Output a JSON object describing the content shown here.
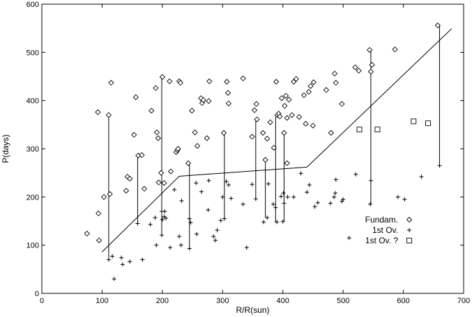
{
  "chart_data": {
    "type": "scatter",
    "xlabel": "R/R(sun)",
    "ylabel": "P(days)",
    "xlim": [
      0,
      700
    ],
    "ylim": [
      0,
      600
    ],
    "xticks": [
      0,
      100,
      200,
      300,
      400,
      500,
      600,
      700
    ],
    "yticks": [
      0,
      100,
      200,
      300,
      400,
      500,
      600
    ],
    "grid": false,
    "legend_position": "bottom-right",
    "legend": [
      {
        "label": "Fundam.",
        "marker": "diamond"
      },
      {
        "label": "1st Ov.",
        "marker": "plus"
      },
      {
        "label": "1st Ov. ?",
        "marker": "square"
      }
    ],
    "series": [
      {
        "name": "Fundam.",
        "marker": "diamond",
        "points": [
          [
            75,
            124
          ],
          [
            93,
            376
          ],
          [
            94,
            166
          ],
          [
            95,
            110
          ],
          [
            103,
            200
          ],
          [
            113,
            206
          ],
          [
            111,
            370
          ],
          [
            115,
            437
          ],
          [
            140,
            213
          ],
          [
            142,
            242
          ],
          [
            146,
            238
          ],
          [
            153,
            329
          ],
          [
            156,
            407
          ],
          [
            160,
            286
          ],
          [
            166,
            287
          ],
          [
            170,
            217
          ],
          [
            182,
            379
          ],
          [
            189,
            426
          ],
          [
            191,
            334
          ],
          [
            193,
            322
          ],
          [
            194,
            230
          ],
          [
            198,
            250
          ],
          [
            200,
            449
          ],
          [
            203,
            229
          ],
          [
            212,
            440
          ],
          [
            214,
            253
          ],
          [
            223,
            293
          ],
          [
            225,
            297
          ],
          [
            226,
            300
          ],
          [
            228,
            440
          ],
          [
            230,
            437
          ],
          [
            243,
            270
          ],
          [
            249,
            379
          ],
          [
            254,
            334
          ],
          [
            258,
            306
          ],
          [
            264,
            405
          ],
          [
            266,
            395
          ],
          [
            268,
            401
          ],
          [
            274,
            322
          ],
          [
            277,
            399
          ],
          [
            278,
            440
          ],
          [
            302,
            333
          ],
          [
            307,
            439
          ],
          [
            309,
            416
          ],
          [
            310,
            394
          ],
          [
            334,
            446
          ],
          [
            349,
            325
          ],
          [
            353,
            380
          ],
          [
            356,
            393
          ],
          [
            357,
            361
          ],
          [
            367,
            333
          ],
          [
            371,
            277
          ],
          [
            374,
            321
          ],
          [
            379,
            355
          ],
          [
            385,
            302
          ],
          [
            389,
            439
          ],
          [
            391,
            370
          ],
          [
            393,
            373
          ],
          [
            395,
            367
          ],
          [
            398,
            405
          ],
          [
            402,
            333
          ],
          [
            403,
            389
          ],
          [
            405,
            410
          ],
          [
            407,
            364
          ],
          [
            407,
            270
          ],
          [
            410,
            402
          ],
          [
            415,
            370
          ],
          [
            418,
            439
          ],
          [
            422,
            445
          ],
          [
            427,
            366
          ],
          [
            435,
            411
          ],
          [
            438,
            352
          ],
          [
            443,
            418
          ],
          [
            446,
            430
          ],
          [
            450,
            348
          ],
          [
            451,
            438
          ],
          [
            472,
            422
          ],
          [
            480,
            333
          ],
          [
            486,
            456
          ],
          [
            488,
            437
          ],
          [
            498,
            393
          ],
          [
            520,
            469
          ],
          [
            526,
            462
          ],
          [
            544,
            505
          ],
          [
            546,
            460
          ],
          [
            548,
            474
          ],
          [
            586,
            506
          ],
          [
            657,
            556
          ]
        ]
      },
      {
        "name": "1st Ov.",
        "marker": "plus",
        "points": [
          [
            111,
            70
          ],
          [
            117,
            77
          ],
          [
            120,
            30
          ],
          [
            132,
            74
          ],
          [
            134,
            60
          ],
          [
            146,
            66
          ],
          [
            159,
            145
          ],
          [
            167,
            70
          ],
          [
            180,
            143
          ],
          [
            188,
            157
          ],
          [
            190,
            100
          ],
          [
            199,
            170
          ],
          [
            199,
            121
          ],
          [
            200,
            153
          ],
          [
            203,
            159
          ],
          [
            204,
            170
          ],
          [
            206,
            156
          ],
          [
            213,
            95
          ],
          [
            220,
            215
          ],
          [
            228,
            118
          ],
          [
            231,
            100
          ],
          [
            232,
            192
          ],
          [
            245,
            93
          ],
          [
            245,
            155
          ],
          [
            247,
            147
          ],
          [
            256,
            229
          ],
          [
            257,
            123
          ],
          [
            265,
            211
          ],
          [
            276,
            173
          ],
          [
            277,
            234
          ],
          [
            285,
            118
          ],
          [
            288,
            110
          ],
          [
            291,
            131
          ],
          [
            297,
            151
          ],
          [
            300,
            200
          ],
          [
            303,
            155
          ],
          [
            306,
            232
          ],
          [
            310,
            225
          ],
          [
            314,
            197
          ],
          [
            334,
            185
          ],
          [
            340,
            95
          ],
          [
            349,
            226
          ],
          [
            355,
            196
          ],
          [
            368,
            148
          ],
          [
            374,
            157
          ],
          [
            376,
            227
          ],
          [
            384,
            185
          ],
          [
            388,
            178
          ],
          [
            390,
            148
          ],
          [
            397,
            201
          ],
          [
            400,
            149
          ],
          [
            401,
            208
          ],
          [
            402,
            187
          ],
          [
            408,
            200
          ],
          [
            418,
            200
          ],
          [
            430,
            249
          ],
          [
            440,
            210
          ],
          [
            444,
            225
          ],
          [
            453,
            180
          ],
          [
            458,
            188
          ],
          [
            479,
            187
          ],
          [
            485,
            200
          ],
          [
            487,
            208
          ],
          [
            488,
            236
          ],
          [
            498,
            191
          ],
          [
            500,
            195
          ],
          [
            510,
            115
          ],
          [
            521,
            247
          ],
          [
            545,
            185
          ],
          [
            546,
            234
          ],
          [
            591,
            200
          ],
          [
            602,
            195
          ],
          [
            630,
            242
          ],
          [
            660,
            265
          ]
        ]
      },
      {
        "name": "1st Ov. ?",
        "marker": "square",
        "points": [
          [
            527,
            340
          ],
          [
            557,
            340
          ],
          [
            617,
            357
          ],
          [
            641,
            353
          ]
        ]
      }
    ],
    "fit_line": [
      [
        100,
        86
      ],
      [
        228,
        243
      ],
      [
        440,
        262
      ],
      [
        680,
        549
      ]
    ],
    "connector_lines": [
      [
        111,
        70,
        111,
        370
      ],
      [
        159,
        145,
        159,
        286
      ],
      [
        199,
        121,
        199,
        449
      ],
      [
        245,
        93,
        245,
        270
      ],
      [
        303,
        155,
        303,
        333
      ],
      [
        355,
        196,
        355,
        361
      ],
      [
        371,
        157,
        371,
        277
      ],
      [
        388,
        148,
        388,
        367
      ],
      [
        402,
        149,
        402,
        333
      ],
      [
        546,
        185,
        546,
        505
      ],
      [
        660,
        265,
        660,
        556
      ]
    ]
  }
}
